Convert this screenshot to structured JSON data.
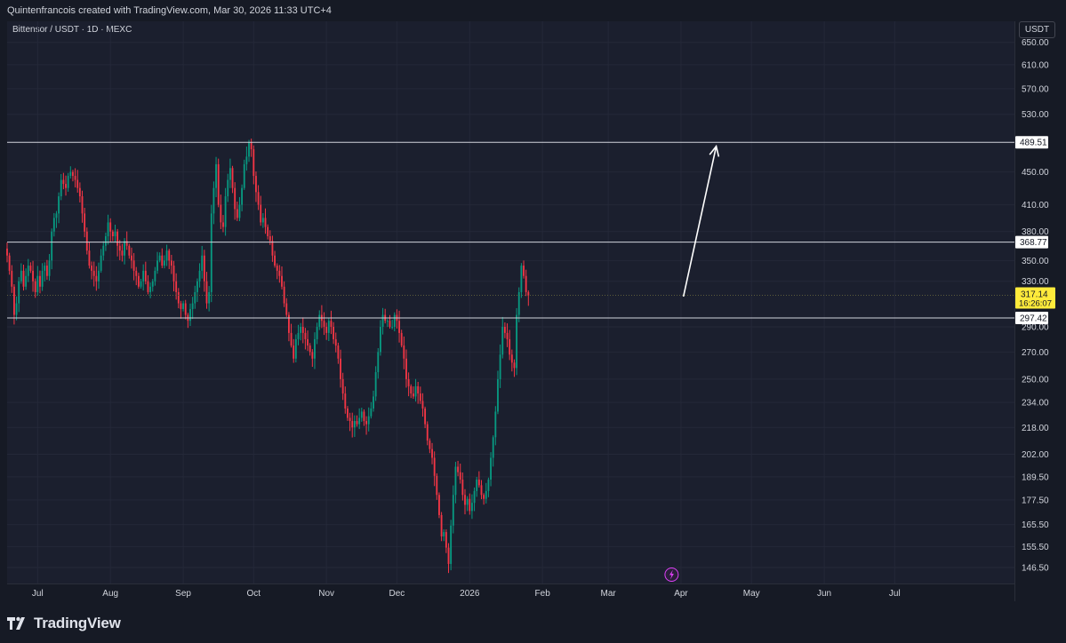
{
  "header": {
    "credit": "Quintenfrancois created with TradingView.com, Mar 30, 2026 11:33 UTC+4"
  },
  "symbol_info": "Bittensor / USDT · 1D · MEXC",
  "currency": "USDT",
  "branding": {
    "logo_text": "TradingView",
    "logo_icon": "tradingview-logo-icon"
  },
  "lightning_icon": "lightning-icon",
  "colors": {
    "up": "#089981",
    "down": "#f23645",
    "background": "#1b1f2e",
    "level_line": "#d1d4dc",
    "last_price_label": "#ffeb3b",
    "arrow": "#ffffff"
  },
  "chart_data": {
    "type": "candlestick",
    "title": "Bittensor / USDT · 1D · MEXC",
    "scale": "log",
    "y_ticks": [
      650,
      610,
      570,
      530,
      450,
      410,
      380,
      350,
      330,
      290,
      270,
      250,
      234,
      218,
      202,
      189.5,
      177.5,
      165.5,
      155.5,
      146.5
    ],
    "y_tick_labels": [
      "650.00",
      "610.00",
      "570.00",
      "530.00",
      "450.00",
      "410.00",
      "380.00",
      "350.00",
      "330.00",
      "290.00",
      "270.00",
      "250.00",
      "234.00",
      "218.00",
      "202.00",
      "189.50",
      "177.50",
      "165.50",
      "155.50",
      "146.50"
    ],
    "x_ticks": [
      {
        "label": "Jul",
        "date": "2025-07-01"
      },
      {
        "label": "Aug",
        "date": "2025-08-01"
      },
      {
        "label": "Sep",
        "date": "2025-09-01"
      },
      {
        "label": "Oct",
        "date": "2025-10-01"
      },
      {
        "label": "Nov",
        "date": "2025-11-01"
      },
      {
        "label": "Dec",
        "date": "2025-12-01"
      },
      {
        "label": "2026",
        "date": "2026-01-01"
      },
      {
        "label": "Feb",
        "date": "2026-02-01"
      },
      {
        "label": "Mar",
        "date": "2026-03-01"
      },
      {
        "label": "Apr",
        "date": "2026-04-01"
      },
      {
        "label": "May",
        "date": "2026-05-01"
      },
      {
        "label": "Jun",
        "date": "2026-06-01"
      },
      {
        "label": "Jul",
        "date": "2026-07-01"
      }
    ],
    "x_range": [
      "2025-06-18",
      "2026-08-21"
    ],
    "y_range": [
      140,
      690
    ],
    "horizontal_levels": [
      {
        "value": 489.51,
        "label": "489.51"
      },
      {
        "value": 368.77,
        "label": "368.77"
      },
      {
        "value": 297.42,
        "label": "297.42"
      }
    ],
    "last_price": {
      "value": 317.14,
      "label": "317.14",
      "countdown": "16:26:07"
    },
    "arrow": {
      "from": {
        "date": "2026-03-30",
        "price": 316
      },
      "to": {
        "date": "2026-04-16",
        "price": 484
      }
    },
    "start_date": "2025-06-18",
    "closes": [
      355,
      340,
      325,
      300,
      310,
      330,
      340,
      325,
      335,
      345,
      340,
      330,
      320,
      335,
      325,
      340,
      345,
      335,
      350,
      380,
      395,
      400,
      420,
      440,
      435,
      430,
      445,
      450,
      445,
      440,
      430,
      420,
      400,
      380,
      360,
      345,
      340,
      335,
      330,
      340,
      355,
      365,
      375,
      390,
      380,
      375,
      380,
      365,
      360,
      355,
      370,
      365,
      355,
      350,
      340,
      335,
      325,
      330,
      340,
      330,
      320,
      325,
      330,
      340,
      350,
      355,
      345,
      350,
      360,
      350,
      345,
      330,
      320,
      310,
      305,
      310,
      300,
      295,
      305,
      310,
      320,
      330,
      340,
      355,
      330,
      310,
      320,
      400,
      430,
      460,
      410,
      390,
      385,
      420,
      440,
      455,
      430,
      405,
      395,
      410,
      430,
      460,
      470,
      490,
      480,
      445,
      425,
      410,
      390,
      395,
      385,
      375,
      370,
      355,
      345,
      340,
      335,
      325,
      310,
      300,
      285,
      275,
      265,
      280,
      285,
      290,
      285,
      280,
      275,
      270,
      265,
      280,
      290,
      300,
      295,
      290,
      285,
      295,
      290,
      280,
      275,
      265,
      250,
      240,
      230,
      224,
      222,
      218,
      222,
      220,
      224,
      228,
      222,
      220,
      225,
      230,
      238,
      255,
      270,
      290,
      300,
      295,
      295,
      290,
      290,
      300,
      295,
      285,
      275,
      265,
      250,
      245,
      240,
      238,
      245,
      240,
      235,
      230,
      220,
      210,
      205,
      200,
      190,
      180,
      170,
      160,
      162,
      155,
      148,
      165,
      180,
      195,
      192,
      188,
      180,
      175,
      178,
      172,
      176,
      182,
      188,
      185,
      180,
      178,
      182,
      188,
      200,
      212,
      228,
      250,
      268,
      290,
      285,
      280,
      268,
      262,
      258,
      300,
      320,
      345,
      335,
      320,
      317.14
    ]
  }
}
